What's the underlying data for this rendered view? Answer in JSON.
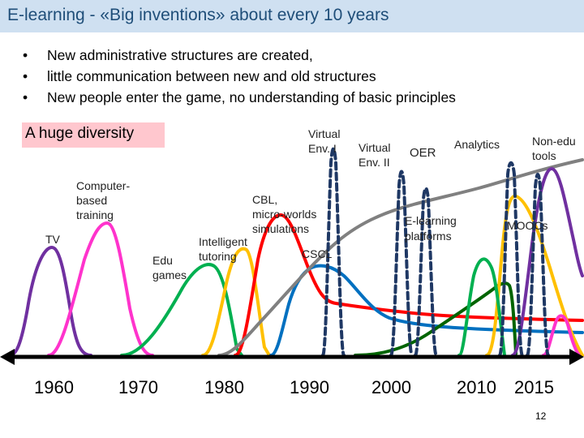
{
  "slide": {
    "title": "E-learning - «Big inventions» about every 10 years",
    "bullets": [
      "New administrative structures are created,",
      "little communication between new and old structures",
      "New people enter the game, no understanding of basic principles"
    ],
    "highlight": "A huge diversity",
    "page_number": "12"
  },
  "labels": {
    "tv": "TV",
    "cbt_1": "Computer-",
    "cbt_2": "based",
    "cbt_3": "training",
    "edu_1": "Edu",
    "edu_2": "games",
    "its_1": "Intelligent",
    "its_2": "tutoring",
    "cbl_1": "CBL,",
    "cbl_2": "micro-worlds",
    "cbl_3": "simulations",
    "cscl": "CSCL",
    "ve1_1": "Virtual",
    "ve1_2": "Env. I",
    "ve2_1": "Virtual",
    "ve2_2": "Env. II",
    "oer": "OER",
    "analytics": "Analytics",
    "elp_1": "E-learning",
    "elp_2": "platforms",
    "moocs": "MOOCs",
    "nonedu_1": "Non-edu",
    "nonedu_2": "tools"
  },
  "timeline": {
    "years": [
      "1960",
      "1970",
      "1980",
      "1990",
      "2000",
      "2010",
      "2015"
    ]
  },
  "colors": {
    "title_bar": "#cfe0f1",
    "title_text": "#1f4e79",
    "highlight": "#ffc7ce",
    "tv": "#7030a0",
    "cbt": "#ff33cc",
    "edu_games": "#00b050",
    "its": "#ffc000",
    "cbl": "#ff0000",
    "cscl": "#0070c0",
    "elearning": "#808080",
    "virtual_env": "#1f3864",
    "oer": "#c00000",
    "analytics": "#006400",
    "moocs": "#ffc000",
    "non_edu": "#7030a0"
  }
}
